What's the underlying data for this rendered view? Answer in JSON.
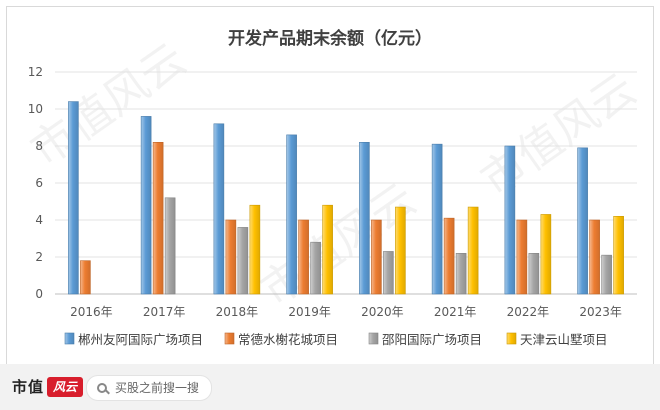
{
  "chart_data": {
    "type": "bar",
    "title": "开发产品期末余额（亿元）",
    "categories": [
      "2016年",
      "2017年",
      "2018年",
      "2019年",
      "2020年",
      "2021年",
      "2022年",
      "2023年"
    ],
    "series": [
      {
        "name": "郴州友阿国际广场项目",
        "color": "#5b9bd5",
        "values": [
          10.4,
          9.6,
          9.2,
          8.6,
          8.2,
          8.1,
          8.0,
          7.9
        ]
      },
      {
        "name": "常德水榭花城项目",
        "color": "#ed7d31",
        "values": [
          1.8,
          8.2,
          4.0,
          4.0,
          4.0,
          4.1,
          4.0,
          4.0
        ]
      },
      {
        "name": "邵阳国际广场项目",
        "color": "#a5a5a5",
        "values": [
          null,
          5.2,
          3.6,
          2.8,
          2.3,
          2.2,
          2.2,
          2.1
        ]
      },
      {
        "name": "天津云山墅项目",
        "color": "#ffc000",
        "values": [
          null,
          null,
          4.8,
          4.8,
          4.7,
          4.7,
          4.3,
          4.2
        ]
      }
    ],
    "ylim": [
      0,
      12
    ],
    "yticks": [
      0,
      2,
      4,
      6,
      8,
      10,
      12
    ],
    "grid": true,
    "legend_position": "bottom"
  },
  "watermark": "市值风云",
  "footer": {
    "logo_text": "市值",
    "logo_mark": "风云",
    "search_placeholder": "买股之前搜一搜"
  }
}
